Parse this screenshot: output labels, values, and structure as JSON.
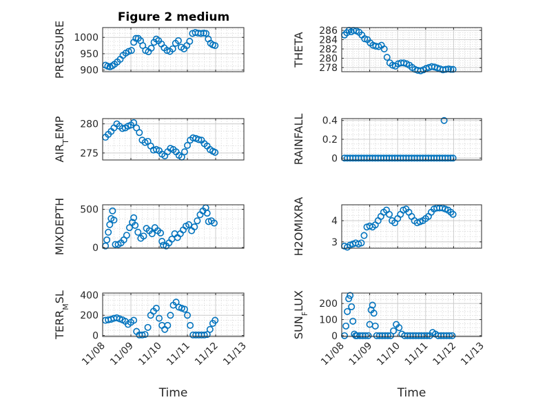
{
  "figure": {
    "title": "Figure 2 medium"
  },
  "style": {
    "marker_color": "#0072bd",
    "grid_color": "#d9d9d9",
    "axis_color": "#262626"
  },
  "chart_data": [
    {
      "id": "pressure",
      "type": "scatter",
      "title": "Figure 2 medium",
      "ylabel": {
        "parts": [
          {
            "text": "PRESSURE"
          }
        ]
      },
      "xlabel": "",
      "xlim": [
        0,
        5
      ],
      "ylim": [
        895,
        1030
      ],
      "xticks": [
        0,
        1,
        2,
        3,
        4,
        5
      ],
      "xticklabels": [
        "",
        "",
        "",
        "",
        "",
        ""
      ],
      "yticks": [
        900,
        950,
        1000
      ],
      "yticklabels": [
        "900",
        "950",
        "1000"
      ],
      "x": [
        0.1,
        0.18,
        0.26,
        0.34,
        0.42,
        0.52,
        0.62,
        0.72,
        0.82,
        0.92,
        1.02,
        1.1,
        1.18,
        1.26,
        1.34,
        1.42,
        1.52,
        1.62,
        1.72,
        1.82,
        1.9,
        1.98,
        2.08,
        2.18,
        2.28,
        2.38,
        2.48,
        2.58,
        2.68,
        2.78,
        2.88,
        2.98,
        3.08,
        3.18,
        3.28,
        3.38,
        3.48,
        3.58,
        3.66,
        3.74,
        3.82,
        3.9,
        3.98
      ],
      "y": [
        915,
        912,
        910,
        913,
        918,
        925,
        933,
        945,
        952,
        957,
        960,
        985,
        997,
        997,
        990,
        975,
        960,
        956,
        967,
        985,
        995,
        990,
        980,
        968,
        960,
        957,
        965,
        982,
        990,
        970,
        965,
        975,
        988,
        1012,
        1015,
        1013,
        1012,
        1013,
        1012,
        995,
        982,
        977,
        975
      ]
    },
    {
      "id": "theta",
      "type": "scatter",
      "title": "",
      "ylabel": {
        "parts": [
          {
            "text": "THETA"
          }
        ]
      },
      "xlabel": "",
      "xlim": [
        0,
        5
      ],
      "ylim": [
        277.1,
        286.6
      ],
      "xticks": [
        0,
        1,
        2,
        3,
        4,
        5
      ],
      "xticklabels": [
        "",
        "",
        "",
        "",
        "",
        ""
      ],
      "yticks": [
        278,
        280,
        282,
        284,
        286
      ],
      "yticklabels": [
        "278",
        "280",
        "282",
        "284",
        "286"
      ],
      "x": [
        0.1,
        0.18,
        0.26,
        0.34,
        0.42,
        0.52,
        0.62,
        0.72,
        0.82,
        0.92,
        1.02,
        1.12,
        1.22,
        1.32,
        1.42,
        1.52,
        1.62,
        1.72,
        1.82,
        1.92,
        2.02,
        2.12,
        2.22,
        2.32,
        2.42,
        2.52,
        2.62,
        2.72,
        2.82,
        2.92,
        3.02,
        3.12,
        3.22,
        3.32,
        3.42,
        3.52,
        3.62,
        3.72,
        3.82,
        3.9,
        3.98
      ],
      "y": [
        285.0,
        285.5,
        286.0,
        285.7,
        286.0,
        285.9,
        285.6,
        285.0,
        284.2,
        284.0,
        283.3,
        282.8,
        282.6,
        282.5,
        282.8,
        282.0,
        280.2,
        279.0,
        278.5,
        278.3,
        278.8,
        279.0,
        279.0,
        278.8,
        278.5,
        278.0,
        277.6,
        277.4,
        277.3,
        277.5,
        277.8,
        278.0,
        278.2,
        278.1,
        277.9,
        277.7,
        277.5,
        277.6,
        277.7,
        277.6,
        277.6
      ]
    },
    {
      "id": "air_temp",
      "type": "scatter",
      "title": "",
      "ylabel": {
        "parts": [
          {
            "text": "AIR"
          },
          {
            "text": "T",
            "sub": true
          },
          {
            "text": "EMP"
          }
        ]
      },
      "xlabel": "",
      "xlim": [
        0,
        5
      ],
      "ylim": [
        273.8,
        280.9
      ],
      "xticks": [
        0,
        1,
        2,
        3,
        4,
        5
      ],
      "xticklabels": [
        "",
        "",
        "",
        "",
        "",
        ""
      ],
      "yticks": [
        275,
        280
      ],
      "yticklabels": [
        "275",
        "280"
      ],
      "x": [
        0.1,
        0.2,
        0.3,
        0.4,
        0.5,
        0.6,
        0.7,
        0.8,
        0.9,
        1.0,
        1.1,
        1.2,
        1.3,
        1.4,
        1.5,
        1.6,
        1.7,
        1.8,
        1.9,
        2.0,
        2.1,
        2.2,
        2.3,
        2.4,
        2.5,
        2.6,
        2.7,
        2.8,
        2.9,
        3.0,
        3.1,
        3.2,
        3.3,
        3.4,
        3.5,
        3.6,
        3.7,
        3.8,
        3.9,
        3.98
      ],
      "y": [
        277.7,
        278.2,
        278.7,
        279.3,
        280.0,
        279.6,
        279.2,
        279.3,
        279.6,
        279.8,
        280.2,
        279.3,
        278.5,
        277.2,
        276.8,
        277.0,
        276.2,
        275.5,
        275.6,
        275.4,
        274.8,
        274.5,
        275.2,
        275.8,
        275.6,
        275.2,
        274.6,
        274.3,
        275.2,
        276.3,
        277.2,
        277.6,
        277.5,
        277.3,
        277.2,
        276.6,
        276.2,
        275.6,
        275.3,
        275.1
      ]
    },
    {
      "id": "rainfall",
      "type": "scatter",
      "title": "",
      "ylabel": {
        "parts": [
          {
            "text": "RAINFALL"
          }
        ]
      },
      "xlabel": "",
      "xlim": [
        0,
        5
      ],
      "ylim": [
        -0.02,
        0.42
      ],
      "xticks": [
        0,
        1,
        2,
        3,
        4,
        5
      ],
      "xticklabels": [
        "",
        "",
        "",
        "",
        "",
        ""
      ],
      "yticks": [
        0,
        0.2,
        0.4
      ],
      "yticklabels": [
        "0",
        "0.2",
        "0.4"
      ],
      "x": [
        0.1,
        0.2,
        0.3,
        0.4,
        0.5,
        0.6,
        0.7,
        0.8,
        0.9,
        1.0,
        1.1,
        1.2,
        1.3,
        1.4,
        1.5,
        1.6,
        1.7,
        1.8,
        1.9,
        2.0,
        2.1,
        2.2,
        2.3,
        2.4,
        2.5,
        2.6,
        2.7,
        2.8,
        2.9,
        3.0,
        3.1,
        3.2,
        3.3,
        3.4,
        3.5,
        3.6,
        3.66,
        3.7,
        3.8,
        3.9,
        3.98
      ],
      "y": [
        0,
        0,
        0,
        0,
        0,
        0,
        0,
        0,
        0,
        0,
        0,
        0,
        0,
        0,
        0,
        0,
        0,
        0,
        0,
        0,
        0,
        0,
        0,
        0,
        0,
        0,
        0,
        0,
        0,
        0,
        0,
        0,
        0,
        0,
        0,
        0,
        0.4,
        0,
        0,
        0,
        0
      ]
    },
    {
      "id": "mixdepth",
      "type": "scatter",
      "title": "",
      "ylabel": {
        "parts": [
          {
            "text": "MIXDEPTH"
          }
        ]
      },
      "xlabel": "",
      "xlim": [
        0,
        5
      ],
      "ylim": [
        -10,
        560
      ],
      "xticks": [
        0,
        1,
        2,
        3,
        4,
        5
      ],
      "xticklabels": [
        "",
        "",
        "",
        "",
        "",
        ""
      ],
      "yticks": [
        0,
        500
      ],
      "yticklabels": [
        "0",
        "500"
      ],
      "x": [
        0.1,
        0.15,
        0.2,
        0.25,
        0.3,
        0.35,
        0.4,
        0.45,
        0.55,
        0.65,
        0.75,
        0.85,
        0.95,
        1.05,
        1.1,
        1.15,
        1.25,
        1.35,
        1.45,
        1.55,
        1.65,
        1.75,
        1.85,
        1.95,
        2.05,
        2.1,
        2.15,
        2.25,
        2.35,
        2.45,
        2.55,
        2.65,
        2.75,
        2.85,
        2.95,
        3.05,
        3.15,
        3.25,
        3.35,
        3.45,
        3.55,
        3.65,
        3.7,
        3.75,
        3.85,
        3.95
      ],
      "y": [
        20,
        100,
        200,
        300,
        380,
        480,
        360,
        40,
        40,
        60,
        100,
        160,
        260,
        330,
        390,
        290,
        200,
        120,
        150,
        250,
        220,
        180,
        260,
        220,
        190,
        80,
        30,
        20,
        60,
        110,
        180,
        130,
        180,
        230,
        280,
        300,
        220,
        270,
        350,
        430,
        480,
        520,
        450,
        340,
        350,
        320
      ]
    },
    {
      "id": "h2omixra",
      "type": "scatter",
      "title": "",
      "ylabel": {
        "parts": [
          {
            "text": "H2OMIXRA"
          }
        ]
      },
      "xlabel": "",
      "xlim": [
        0,
        5
      ],
      "ylim": [
        2.7,
        4.75
      ],
      "xticks": [
        0,
        1,
        2,
        3,
        4,
        5
      ],
      "xticklabels": [
        "",
        "",
        "",
        "",
        "",
        ""
      ],
      "yticks": [
        3,
        4
      ],
      "yticklabels": [
        "3",
        "4"
      ],
      "x": [
        0.1,
        0.2,
        0.3,
        0.4,
        0.5,
        0.6,
        0.7,
        0.8,
        0.9,
        1.0,
        1.1,
        1.2,
        1.3,
        1.4,
        1.5,
        1.6,
        1.7,
        1.8,
        1.9,
        2.0,
        2.1,
        2.2,
        2.3,
        2.4,
        2.5,
        2.6,
        2.7,
        2.8,
        2.9,
        3.0,
        3.1,
        3.2,
        3.3,
        3.4,
        3.5,
        3.6,
        3.7,
        3.8,
        3.9,
        3.98
      ],
      "y": [
        2.8,
        2.75,
        2.85,
        2.9,
        2.95,
        2.9,
        2.95,
        3.3,
        3.7,
        3.75,
        3.7,
        3.8,
        4.0,
        4.2,
        4.4,
        4.5,
        4.3,
        4.0,
        3.9,
        4.1,
        4.3,
        4.5,
        4.55,
        4.4,
        4.2,
        4.0,
        3.9,
        3.95,
        4.0,
        4.1,
        4.2,
        4.4,
        4.55,
        4.6,
        4.6,
        4.6,
        4.55,
        4.5,
        4.4,
        4.3
      ]
    },
    {
      "id": "terr_msl",
      "type": "scatter",
      "title": "",
      "ylabel": {
        "parts": [
          {
            "text": "TERR"
          },
          {
            "text": "M",
            "sub": true
          },
          {
            "text": "SL"
          }
        ]
      },
      "xlabel": "Time",
      "xlim": [
        0,
        5
      ],
      "ylim": [
        -10,
        420
      ],
      "xticks": [
        0,
        1,
        2,
        3,
        4,
        5
      ],
      "xticklabels": [
        "11/08",
        "11/09",
        "11/10",
        "11/11",
        "11/12",
        "11/13"
      ],
      "yticks": [
        0,
        200,
        400
      ],
      "yticklabels": [
        "0",
        "200",
        "400"
      ],
      "x": [
        0.1,
        0.2,
        0.3,
        0.4,
        0.5,
        0.6,
        0.7,
        0.8,
        0.9,
        1.0,
        1.1,
        1.2,
        1.3,
        1.4,
        1.5,
        1.6,
        1.7,
        1.8,
        1.9,
        2.0,
        2.1,
        2.2,
        2.3,
        2.4,
        2.5,
        2.6,
        2.7,
        2.8,
        2.9,
        3.0,
        3.1,
        3.2,
        3.3,
        3.4,
        3.5,
        3.6,
        3.7,
        3.8,
        3.9,
        3.98
      ],
      "y": [
        150,
        155,
        160,
        170,
        175,
        165,
        155,
        140,
        110,
        130,
        150,
        40,
        5,
        5,
        10,
        80,
        200,
        240,
        270,
        170,
        100,
        60,
        100,
        200,
        300,
        330,
        280,
        270,
        260,
        200,
        100,
        5,
        5,
        5,
        5,
        5,
        10,
        60,
        120,
        150
      ]
    },
    {
      "id": "sun_flux",
      "type": "scatter",
      "title": "",
      "ylabel": {
        "parts": [
          {
            "text": "SUN"
          },
          {
            "text": "F",
            "sub": true
          },
          {
            "text": "LUX"
          }
        ]
      },
      "xlabel": "Time",
      "xlim": [
        0,
        5
      ],
      "ylim": [
        -5,
        265
      ],
      "xticks": [
        0,
        1,
        2,
        3,
        4,
        5
      ],
      "xticklabels": [
        "11/08",
        "11/09",
        "11/10",
        "11/11",
        "11/12",
        "11/13"
      ],
      "yticks": [
        0,
        100,
        200
      ],
      "yticklabels": [
        "0",
        "100",
        "200"
      ],
      "x": [
        0.1,
        0.15,
        0.2,
        0.25,
        0.3,
        0.35,
        0.4,
        0.45,
        0.5,
        0.55,
        0.65,
        0.75,
        0.85,
        0.95,
        1.0,
        1.05,
        1.1,
        1.15,
        1.2,
        1.25,
        1.35,
        1.45,
        1.55,
        1.65,
        1.75,
        1.85,
        1.95,
        2.05,
        2.15,
        2.25,
        2.35,
        2.45,
        2.55,
        2.65,
        2.75,
        2.85,
        2.95,
        3.05,
        3.15,
        3.25,
        3.35,
        3.45,
        3.55,
        3.65,
        3.75,
        3.85,
        3.95
      ],
      "y": [
        0,
        60,
        150,
        230,
        250,
        180,
        90,
        10,
        0,
        0,
        0,
        0,
        0,
        0,
        70,
        160,
        190,
        140,
        60,
        0,
        0,
        0,
        0,
        0,
        0,
        30,
        70,
        50,
        10,
        0,
        0,
        0,
        0,
        0,
        0,
        0,
        0,
        0,
        0,
        20,
        10,
        0,
        0,
        0,
        0,
        0,
        0
      ]
    }
  ]
}
